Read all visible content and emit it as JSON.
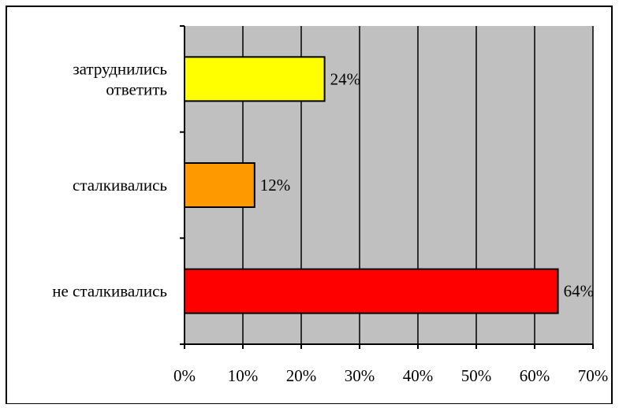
{
  "chart_data": {
    "type": "bar",
    "orientation": "horizontal",
    "title": "",
    "xlabel": "",
    "ylabel": "",
    "categories": [
      "затруднились ответить",
      "сталкивались",
      "не сталкивались"
    ],
    "category_lines": [
      [
        "затруднились",
        "ответить"
      ],
      [
        "сталкивались"
      ],
      [
        "не сталкивались"
      ]
    ],
    "values": [
      24,
      12,
      64
    ],
    "value_labels": [
      "24%",
      "12%",
      "64%"
    ],
    "bar_colors": [
      "#ffff00",
      "#ff9900",
      "#ff0000"
    ],
    "xlim": [
      0,
      70
    ],
    "xticks": [
      0,
      10,
      20,
      30,
      40,
      50,
      60,
      70
    ],
    "xtick_labels": [
      "0%",
      "10%",
      "20%",
      "30%",
      "40%",
      "50%",
      "60%",
      "70%"
    ],
    "grid": "vertical",
    "plot_background": "#c0c0c0",
    "legend": "none"
  }
}
